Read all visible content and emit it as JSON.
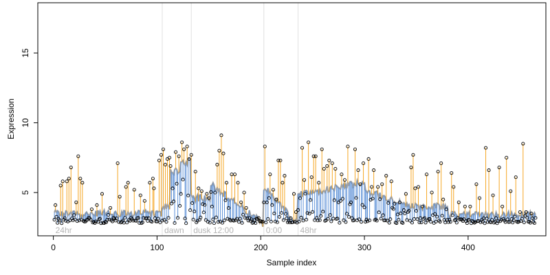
{
  "chart_data": {
    "type": "scatter",
    "title": "",
    "xlabel": "Sample index",
    "ylabel": "Expression",
    "xlim": [
      -15,
      475
    ],
    "ylim": [
      1.9,
      18.6
    ],
    "x_ticks": [
      0,
      100,
      200,
      300,
      400
    ],
    "y_ticks": [
      5,
      10,
      15
    ],
    "x_tick_labels": [
      "0",
      "100",
      "200",
      "300",
      "400"
    ],
    "y_tick_labels": [
      "5",
      "10",
      "15"
    ],
    "grid": false,
    "legend": "none",
    "colors": {
      "above_baseline": "#f5a623",
      "below_baseline": "#5b8fd6",
      "baseline": "#a0a0a0",
      "points": "#000000",
      "phase_lines": "#e0e0e0",
      "phase_text": "#b4b4b4"
    },
    "phases": [
      {
        "label": "24hr",
        "start": 0
      },
      {
        "label": "dawn",
        "start": 105
      },
      {
        "label": "dusk",
        "start": 133
      },
      {
        "label": "12:00",
        "start": 152
      },
      {
        "label": "0:00",
        "start": 203
      },
      {
        "label": "48hr",
        "start": 236
      }
    ],
    "phase_boundaries": [
      105,
      133,
      203,
      236
    ],
    "baseline_segments": [
      {
        "x_start": 1,
        "x_end": 104,
        "level": 3.5
      },
      {
        "x_start": 105,
        "x_end": 112,
        "level": 4.0
      },
      {
        "x_start": 113,
        "x_end": 122,
        "level": 6.5
      },
      {
        "x_start": 123,
        "x_end": 132,
        "level": 7.2
      },
      {
        "x_start": 133,
        "x_end": 151,
        "level": 4.6
      },
      {
        "x_start": 152,
        "x_end": 202,
        "level": 4.3
      },
      {
        "x_start": 203,
        "x_end": 235,
        "level": 3.8
      },
      {
        "x_start": 236,
        "x_end": 300,
        "level": 5.3
      },
      {
        "x_start": 301,
        "x_end": 345,
        "level": 4.6
      },
      {
        "x_start": 346,
        "x_end": 380,
        "level": 4.0
      },
      {
        "x_start": 381,
        "x_end": 465,
        "level": 3.4
      }
    ],
    "samples": {
      "count": 465,
      "min": 2.8,
      "spikes": [
        {
          "x": 2,
          "y": 4.1
        },
        {
          "x": 7,
          "y": 5.5
        },
        {
          "x": 9,
          "y": 5.8
        },
        {
          "x": 13,
          "y": 5.8
        },
        {
          "x": 15,
          "y": 6.0
        },
        {
          "x": 17,
          "y": 6.8
        },
        {
          "x": 22,
          "y": 4.3
        },
        {
          "x": 24,
          "y": 7.6
        },
        {
          "x": 26,
          "y": 6.0
        },
        {
          "x": 28,
          "y": 5.7
        },
        {
          "x": 37,
          "y": 3.8
        },
        {
          "x": 42,
          "y": 4.1
        },
        {
          "x": 47,
          "y": 4.9
        },
        {
          "x": 55,
          "y": 3.9
        },
        {
          "x": 62,
          "y": 7.1
        },
        {
          "x": 64,
          "y": 4.7
        },
        {
          "x": 70,
          "y": 5.4
        },
        {
          "x": 72,
          "y": 5.7
        },
        {
          "x": 78,
          "y": 5.2
        },
        {
          "x": 84,
          "y": 4.8
        },
        {
          "x": 88,
          "y": 4.4
        },
        {
          "x": 93,
          "y": 5.7
        },
        {
          "x": 96,
          "y": 6.0
        },
        {
          "x": 97,
          "y": 5.3
        },
        {
          "x": 102,
          "y": 7.3
        },
        {
          "x": 104,
          "y": 7.7
        },
        {
          "x": 106,
          "y": 8.1
        },
        {
          "x": 108,
          "y": 7.0
        },
        {
          "x": 110,
          "y": 7.4
        },
        {
          "x": 112,
          "y": 7.5
        },
        {
          "x": 113,
          "y": 6.9
        },
        {
          "x": 115,
          "y": 5.3
        },
        {
          "x": 118,
          "y": 7.9
        },
        {
          "x": 121,
          "y": 7.6
        },
        {
          "x": 124,
          "y": 8.6
        },
        {
          "x": 126,
          "y": 8.1
        },
        {
          "x": 129,
          "y": 8.3
        },
        {
          "x": 131,
          "y": 7.4
        },
        {
          "x": 133,
          "y": 7.7
        },
        {
          "x": 137,
          "y": 6.5
        },
        {
          "x": 140,
          "y": 5.3
        },
        {
          "x": 143,
          "y": 5.1
        },
        {
          "x": 148,
          "y": 4.9
        },
        {
          "x": 150,
          "y": 4.6
        },
        {
          "x": 153,
          "y": 4.0
        },
        {
          "x": 156,
          "y": 5.0
        },
        {
          "x": 158,
          "y": 7.0
        },
        {
          "x": 160,
          "y": 8.0
        },
        {
          "x": 162,
          "y": 9.1
        },
        {
          "x": 164,
          "y": 7.8
        },
        {
          "x": 167,
          "y": 5.7
        },
        {
          "x": 172,
          "y": 6.3
        },
        {
          "x": 175,
          "y": 6.3
        },
        {
          "x": 178,
          "y": 5.7
        },
        {
          "x": 181,
          "y": 4.3
        },
        {
          "x": 184,
          "y": 5.0
        },
        {
          "x": 186,
          "y": 3.9
        },
        {
          "x": 203,
          "y": 4.3
        },
        {
          "x": 204,
          "y": 8.3
        },
        {
          "x": 206,
          "y": 4.3
        },
        {
          "x": 209,
          "y": 6.3
        },
        {
          "x": 212,
          "y": 5.2
        },
        {
          "x": 215,
          "y": 4.5
        },
        {
          "x": 217,
          "y": 7.3
        },
        {
          "x": 219,
          "y": 7.3
        },
        {
          "x": 221,
          "y": 5.7
        },
        {
          "x": 223,
          "y": 6.2
        },
        {
          "x": 232,
          "y": 4.9
        },
        {
          "x": 234,
          "y": 3.6
        },
        {
          "x": 238,
          "y": 4.6
        },
        {
          "x": 240,
          "y": 8.2
        },
        {
          "x": 242,
          "y": 5.9
        },
        {
          "x": 246,
          "y": 8.6
        },
        {
          "x": 249,
          "y": 6.1
        },
        {
          "x": 251,
          "y": 7.6
        },
        {
          "x": 253,
          "y": 7.6
        },
        {
          "x": 256,
          "y": 5.7
        },
        {
          "x": 259,
          "y": 8.1
        },
        {
          "x": 261,
          "y": 6.7
        },
        {
          "x": 264,
          "y": 6.9
        },
        {
          "x": 266,
          "y": 7.3
        },
        {
          "x": 269,
          "y": 7.1
        },
        {
          "x": 272,
          "y": 6.7
        },
        {
          "x": 275,
          "y": 4.3
        },
        {
          "x": 278,
          "y": 6.3
        },
        {
          "x": 281,
          "y": 5.9
        },
        {
          "x": 284,
          "y": 8.3
        },
        {
          "x": 287,
          "y": 4.3
        },
        {
          "x": 291,
          "y": 8.1
        },
        {
          "x": 294,
          "y": 6.6
        },
        {
          "x": 296,
          "y": 5.6
        },
        {
          "x": 299,
          "y": 7.1
        },
        {
          "x": 304,
          "y": 7.4
        },
        {
          "x": 307,
          "y": 5.4
        },
        {
          "x": 309,
          "y": 6.6
        },
        {
          "x": 313,
          "y": 5.4
        },
        {
          "x": 317,
          "y": 5.6
        },
        {
          "x": 321,
          "y": 6.2
        },
        {
          "x": 326,
          "y": 5.8
        },
        {
          "x": 329,
          "y": 4.2
        },
        {
          "x": 334,
          "y": 4.3
        },
        {
          "x": 340,
          "y": 4.9
        },
        {
          "x": 345,
          "y": 6.8
        },
        {
          "x": 347,
          "y": 7.7
        },
        {
          "x": 349,
          "y": 5.3
        },
        {
          "x": 352,
          "y": 5.4
        },
        {
          "x": 356,
          "y": 4.0
        },
        {
          "x": 360,
          "y": 6.3
        },
        {
          "x": 365,
          "y": 5.0
        },
        {
          "x": 371,
          "y": 6.5
        },
        {
          "x": 374,
          "y": 7.1
        },
        {
          "x": 376,
          "y": 4.5
        },
        {
          "x": 379,
          "y": 3.8
        },
        {
          "x": 384,
          "y": 6.4
        },
        {
          "x": 386,
          "y": 5.4
        },
        {
          "x": 391,
          "y": 4.3
        },
        {
          "x": 397,
          "y": 4.0
        },
        {
          "x": 402,
          "y": 4.0
        },
        {
          "x": 408,
          "y": 5.6
        },
        {
          "x": 411,
          "y": 4.6
        },
        {
          "x": 417,
          "y": 8.2
        },
        {
          "x": 420,
          "y": 6.6
        },
        {
          "x": 424,
          "y": 4.8
        },
        {
          "x": 430,
          "y": 6.8
        },
        {
          "x": 433,
          "y": 4.0
        },
        {
          "x": 437,
          "y": 7.5
        },
        {
          "x": 441,
          "y": 5.1
        },
        {
          "x": 446,
          "y": 6.1
        },
        {
          "x": 450,
          "y": 3.6
        },
        {
          "x": 453,
          "y": 8.5
        },
        {
          "x": 456,
          "y": 3.6
        },
        {
          "x": 461,
          "y": 3.5
        },
        {
          "x": 463,
          "y": 2.9
        }
      ]
    },
    "series": [
      {
        "values": "expression_by_sample_index"
      }
    ]
  }
}
